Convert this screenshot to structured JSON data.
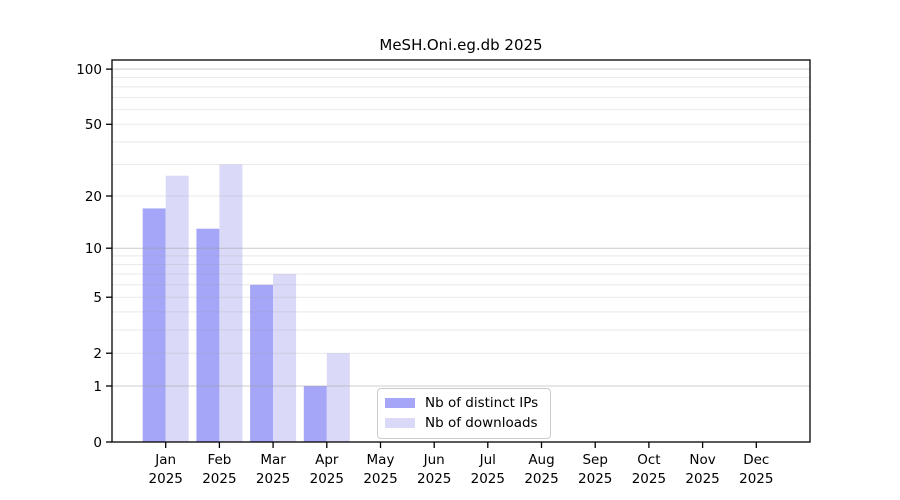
{
  "chart_data": {
    "type": "bar",
    "title": "MeSH.Oni.eg.db 2025",
    "categories": [
      "Jan",
      "Feb",
      "Mar",
      "Apr",
      "May",
      "Jun",
      "Jul",
      "Aug",
      "Sep",
      "Oct",
      "Nov",
      "Dec"
    ],
    "x_year_label": "2025",
    "series": [
      {
        "name": "Nb of distinct IPs",
        "color": "#a6a6f8",
        "values": [
          17,
          13,
          6,
          1,
          0,
          0,
          0,
          0,
          0,
          0,
          0,
          0
        ]
      },
      {
        "name": "Nb of downloads",
        "color": "#dadaf8",
        "values": [
          26,
          30,
          7,
          2,
          0,
          0,
          0,
          0,
          0,
          0,
          0,
          0
        ]
      }
    ],
    "yscale": "log1p",
    "ylim": [
      0,
      112
    ],
    "yticks": [
      0,
      1,
      2,
      5,
      10,
      20,
      50,
      100
    ],
    "minor_gridlines": [
      2,
      3,
      4,
      5,
      6,
      7,
      8,
      9,
      20,
      30,
      40,
      50,
      60,
      70,
      80,
      90
    ],
    "major_gridlines": [
      1,
      10,
      100
    ],
    "grid": true,
    "legend_position": "lower center",
    "colors": {
      "axis": "#000000",
      "grid_minor": "#ebebeb",
      "grid_major": "#c9c9c9",
      "background": "#ffffff"
    }
  }
}
